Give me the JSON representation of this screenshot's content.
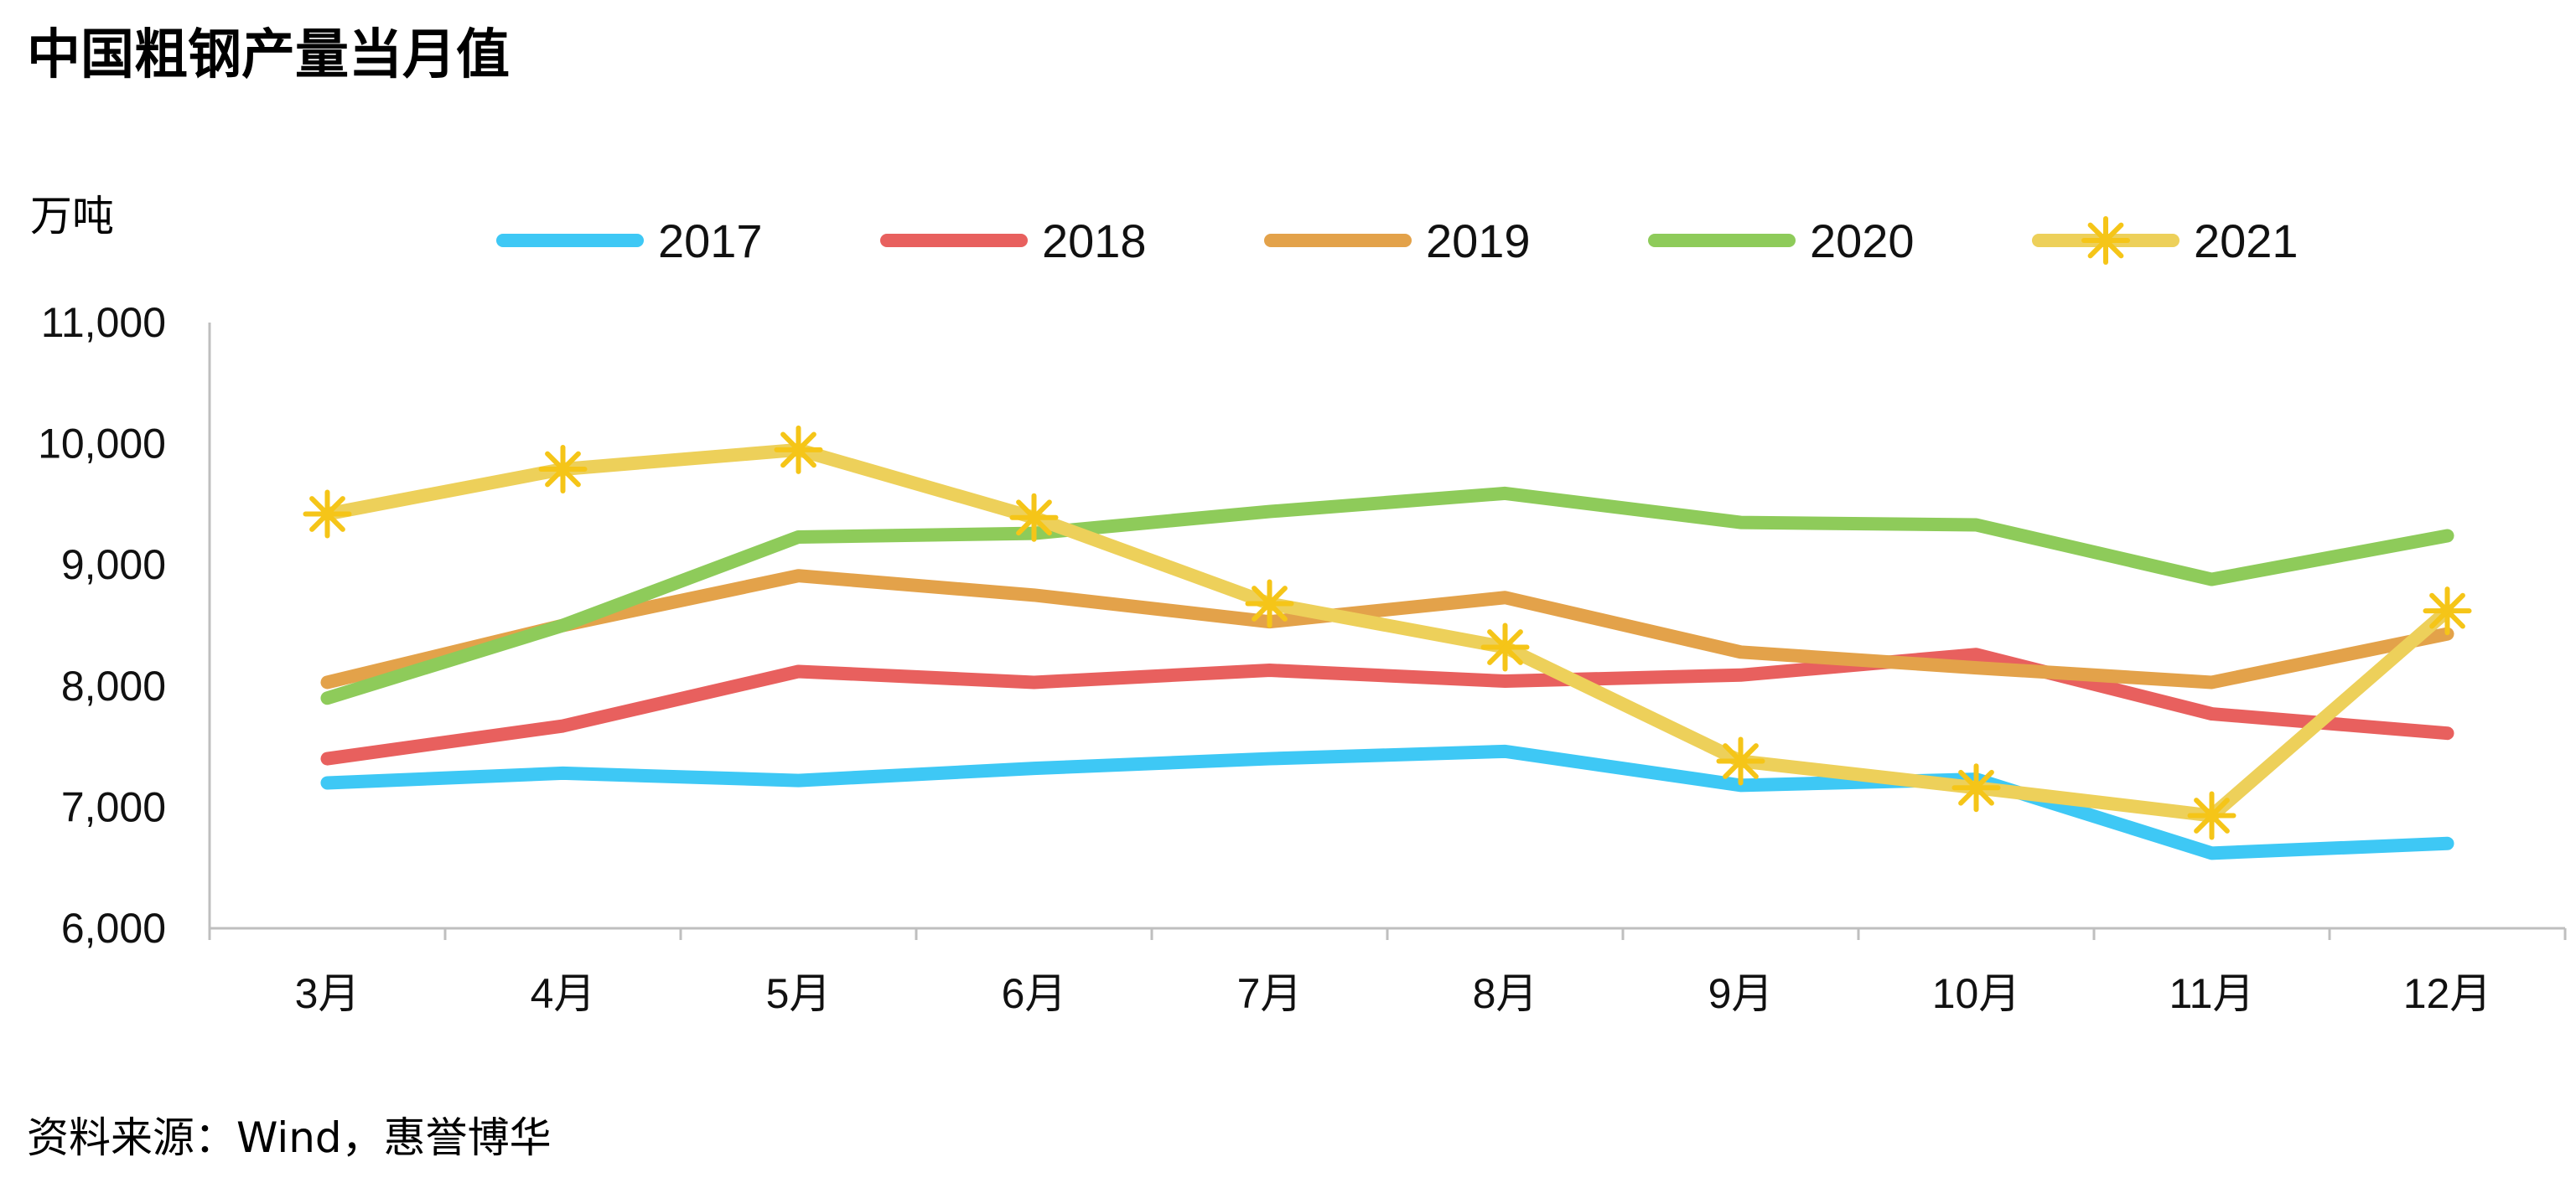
{
  "title": "中国粗钢产量当月值",
  "unit_label": "万吨",
  "source": "资料来源：Wind，惠誉博华",
  "chart_data": {
    "type": "line",
    "title": "中国粗钢产量当月值",
    "ylabel": "万吨",
    "xlabel": "",
    "categories": [
      "3月",
      "4月",
      "5月",
      "6月",
      "7月",
      "8月",
      "9月",
      "10月",
      "11月",
      "12月"
    ],
    "ylim": [
      6000,
      11000
    ],
    "yticks": [
      6000,
      7000,
      8000,
      9000,
      10000,
      11000
    ],
    "ytick_labels": [
      "6,000",
      "7,000",
      "8,000",
      "9,000",
      "10,000",
      "11,000"
    ],
    "grid": false,
    "legend_position": "top",
    "series": [
      {
        "name": "2017",
        "color": "#3ec8f5",
        "marker": "none",
        "values": [
          7200,
          7280,
          7220,
          7320,
          7400,
          7460,
          7180,
          7230,
          6620,
          6700
        ]
      },
      {
        "name": "2018",
        "color": "#e8605e",
        "marker": "none",
        "values": [
          7400,
          7670,
          8120,
          8030,
          8130,
          8040,
          8090,
          8260,
          7770,
          7610
        ]
      },
      {
        "name": "2019",
        "color": "#e3a24a",
        "marker": "none",
        "values": [
          8030,
          8500,
          8910,
          8750,
          8530,
          8730,
          8280,
          8150,
          8030,
          8430
        ]
      },
      {
        "name": "2020",
        "color": "#8ecb5a",
        "marker": "none",
        "values": [
          7900,
          8500,
          9230,
          9260,
          9440,
          9590,
          9350,
          9330,
          8880,
          9240
        ]
      },
      {
        "name": "2021",
        "color": "#edd05a",
        "marker": "asterisk",
        "marker_color": "#f5c518",
        "values": [
          9420,
          9790,
          9950,
          9390,
          8680,
          8320,
          7380,
          7160,
          6930,
          8620
        ]
      }
    ]
  }
}
